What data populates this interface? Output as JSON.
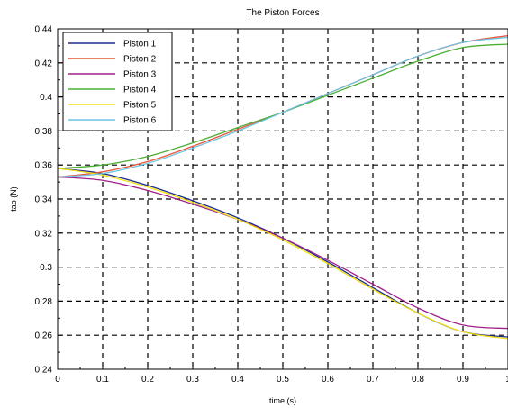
{
  "chart_data": {
    "type": "line",
    "title": "The Piston Forces",
    "xlabel": "time (s)",
    "ylabel": "tao (N)",
    "xlim": [
      0,
      1
    ],
    "ylim": [
      0.24,
      0.44
    ],
    "xticks": [
      0,
      0.1,
      0.2,
      0.3,
      0.4,
      0.5,
      0.6,
      0.7,
      0.8,
      0.9,
      1
    ],
    "xtick_labels": [
      "0",
      "0.1",
      "0.2",
      "0.3",
      "0.4",
      "0.5",
      "0.6",
      "0.7",
      "0.8",
      "0.9",
      "1"
    ],
    "yticks": [
      0.24,
      0.26,
      0.28,
      0.3,
      0.32,
      0.34,
      0.36,
      0.38,
      0.4,
      0.42,
      0.44
    ],
    "ytick_labels": [
      "0.24",
      "0.26",
      "0.28",
      "0.3",
      "0.32",
      "0.34",
      "0.36",
      "0.38",
      "0.4",
      "0.42",
      "0.44"
    ],
    "grid": true,
    "grid_style": "dashed",
    "legend_position": "top-left",
    "x": [
      0,
      0.1,
      0.2,
      0.3,
      0.4,
      0.5,
      0.6,
      0.7,
      0.8,
      0.9,
      1.0
    ],
    "series": [
      {
        "name": "Piston 1",
        "color": "#1f2f8a",
        "values": [
          0.358,
          0.355,
          0.348,
          0.339,
          0.329,
          0.317,
          0.303,
          0.288,
          0.273,
          0.262,
          0.259
        ]
      },
      {
        "name": "Piston 2",
        "color": "#e8553a",
        "values": [
          0.353,
          0.356,
          0.362,
          0.371,
          0.381,
          0.391,
          0.402,
          0.413,
          0.424,
          0.432,
          0.436
        ]
      },
      {
        "name": "Piston 3",
        "color": "#a0208a",
        "values": [
          0.353,
          0.351,
          0.345,
          0.337,
          0.328,
          0.317,
          0.304,
          0.29,
          0.276,
          0.266,
          0.264
        ]
      },
      {
        "name": "Piston 4",
        "color": "#4cae35",
        "values": [
          0.358,
          0.36,
          0.365,
          0.373,
          0.382,
          0.391,
          0.401,
          0.411,
          0.421,
          0.429,
          0.431
        ]
      },
      {
        "name": "Piston 5",
        "color": "#f0e012",
        "values": [
          0.358,
          0.354,
          0.347,
          0.338,
          0.328,
          0.316,
          0.302,
          0.287,
          0.273,
          0.262,
          0.258
        ]
      },
      {
        "name": "Piston 6",
        "color": "#6cc3e2",
        "values": [
          0.353,
          0.355,
          0.361,
          0.37,
          0.38,
          0.391,
          0.402,
          0.413,
          0.424,
          0.432,
          0.435
        ]
      }
    ]
  }
}
